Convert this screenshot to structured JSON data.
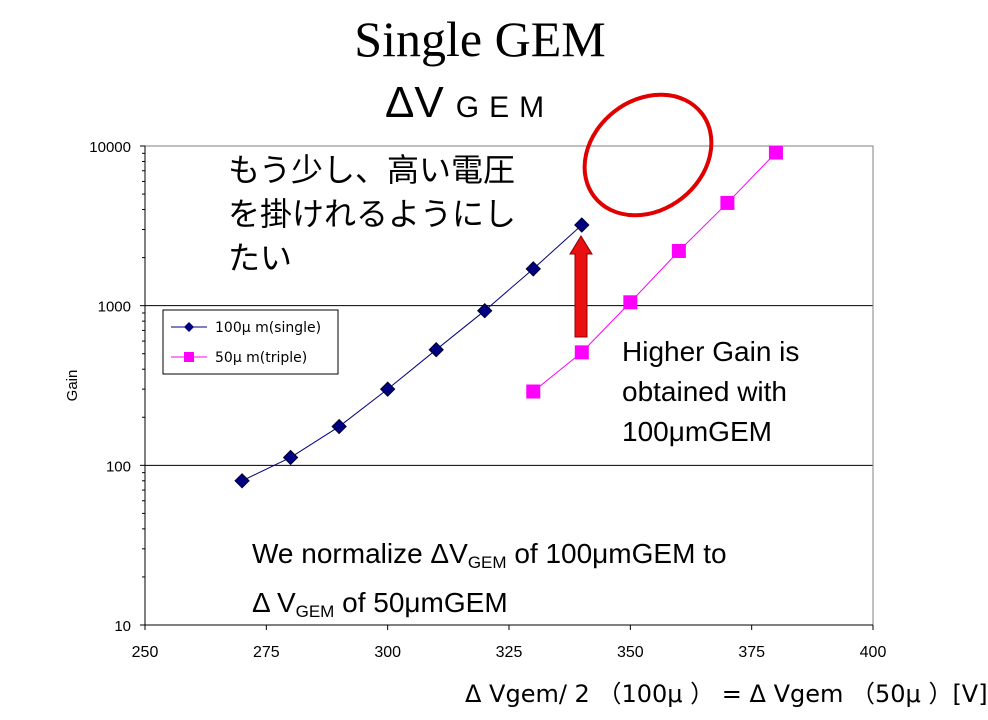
{
  "title": "Single GEM",
  "subtitle": {
    "symbol": "ΔV",
    "sub": "GEM"
  },
  "annotations": {
    "jp_note": [
      "もう少し、高い電圧",
      "を掛けれるようにし",
      "たい"
    ],
    "gain_note": [
      "Higher Gain is",
      "obtained with",
      "100μmGEM"
    ],
    "norm_note": {
      "line1_a": "We normalize ΔV",
      "line1_sub": "GEM",
      "line1_b": " of 100μmGEM to",
      "line2_a": "Δ V",
      "line2_sub": "GEM",
      "line2_b": " of 50μmGEM"
    }
  },
  "colors": {
    "series1": "#000080",
    "series2": "#ff00ff",
    "highlight": "#e00000"
  },
  "chart_data": {
    "type": "scatter",
    "title": "Single GEM",
    "xlabel": "Δ Vgem/ 2 （100μ ） = Δ Vgem （50μ ）[V]",
    "ylabel": "Gain",
    "xlim": [
      250,
      400
    ],
    "ylim": [
      10,
      10000
    ],
    "yscale": "log",
    "x_ticks": [
      "250",
      "275",
      "300",
      "325",
      "350",
      "375",
      "400"
    ],
    "y_ticks": [
      "10",
      "100",
      "1000",
      "10000"
    ],
    "grid": "horizontal",
    "legend": "upper-left",
    "series": [
      {
        "name": "100μ m(single)",
        "marker": "diamond",
        "color": "#000080",
        "x": [
          270,
          280,
          290,
          300,
          310,
          320,
          330,
          340
        ],
        "y": [
          80,
          112,
          175,
          300,
          530,
          930,
          1700,
          3200
        ]
      },
      {
        "name": "50μ m(triple)",
        "marker": "square",
        "color": "#ff00ff",
        "x": [
          330,
          340,
          350,
          360,
          370,
          380
        ],
        "y": [
          290,
          510,
          1050,
          2200,
          4400,
          9100
        ]
      }
    ]
  }
}
